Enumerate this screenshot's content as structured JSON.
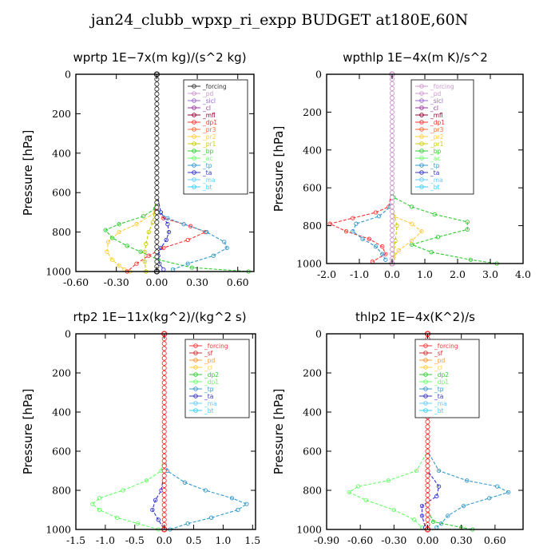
{
  "title": "jan24_clubb_wpxp_ri_expp  BUDGET at180E,60N",
  "chart_data": [
    {
      "type": "line",
      "title": "wprtp   1E−7x(m kg)/(s^2 kg)",
      "ylabel": "Pressure [hPa]",
      "xlim": [
        -0.6,
        0.72
      ],
      "ylim": [
        1000,
        0
      ],
      "xticks": [
        "-0.60",
        "-0.30",
        "0.00",
        "0.30",
        "0.60"
      ],
      "xtick_values": [
        -0.6,
        -0.3,
        0.0,
        0.3,
        0.6
      ],
      "yticks": [
        "0",
        "200",
        "400",
        "600",
        "800",
        "1000"
      ],
      "ytick_values": [
        0,
        200,
        400,
        600,
        800,
        1000
      ],
      "legend": [
        "_forcing",
        "_pd",
        "_sicl",
        "_cl",
        "_mfl",
        "_dp1",
        "_pr3",
        "_pr2",
        "_pr1",
        "_bp",
        "_ac",
        "_tp",
        "_ta",
        "_ma",
        "_bt"
      ],
      "legend_colors": [
        "#333333",
        "#cc99cc",
        "#9966cc",
        "#993399",
        "#990033",
        "#ff3333",
        "#ff6633",
        "#ffcc33",
        "#cccc00",
        "#33cc33",
        "#66ff66",
        "#3399cc",
        "#3333cc",
        "#66ccff",
        "#33ccff"
      ],
      "series": [
        {
          "name": "_pr2",
          "p": [
            0,
            600,
            700,
            760,
            800,
            850,
            900,
            940,
            970,
            990,
            1000
          ],
          "x": [
            0,
            0,
            -0.01,
            -0.15,
            -0.28,
            -0.36,
            -0.37,
            -0.33,
            -0.28,
            -0.24,
            -0.2
          ]
        },
        {
          "name": "_pr1",
          "p": [
            0,
            600,
            750,
            800,
            860,
            900,
            950,
            1000
          ],
          "x": [
            0,
            0,
            -0.03,
            -0.06,
            -0.08,
            -0.09,
            -0.09,
            -0.08
          ]
        },
        {
          "name": "_bp",
          "p": [
            0,
            600,
            680,
            720,
            760,
            790,
            830,
            870,
            900,
            940,
            980,
            1000
          ],
          "x": [
            0,
            0,
            -0.01,
            -0.1,
            -0.28,
            -0.38,
            -0.33,
            -0.22,
            -0.12,
            0.01,
            0.26,
            0.68
          ]
        },
        {
          "name": "_dp1",
          "p": [
            0,
            600,
            690,
            730,
            770,
            800,
            840,
            880,
            920,
            960,
            1000
          ],
          "x": [
            0,
            0,
            0,
            0.05,
            0.25,
            0.36,
            0.23,
            0.05,
            -0.06,
            -0.15,
            -0.22
          ]
        },
        {
          "name": "_tp",
          "p": [
            0,
            600,
            700,
            730,
            760,
            800,
            850,
            880,
            920,
            960,
            990
          ],
          "x": [
            0,
            0,
            0.01,
            0.08,
            0.2,
            0.37,
            0.5,
            0.52,
            0.42,
            0.23,
            0.12
          ]
        },
        {
          "name": "_ta",
          "p": [
            0,
            600,
            700,
            760,
            800,
            840,
            880,
            920,
            960,
            990
          ],
          "x": [
            0,
            0,
            0.03,
            0.08,
            0.09,
            0.07,
            0.03,
            0.01,
            0.02,
            0.05
          ]
        },
        {
          "name": "_forcing",
          "p": [
            0,
            1000
          ],
          "x": [
            0,
            0
          ]
        }
      ]
    },
    {
      "type": "line",
      "title": "wpthlp   1E−4x(m K)/s^2",
      "ylabel": "Pressure [hPa]",
      "xlim": [
        -2.0,
        4.0
      ],
      "ylim": [
        1000,
        0
      ],
      "xticks": [
        "-2.0",
        "-1.0",
        "0.0",
        "1.0",
        "2.0",
        "3.0",
        "4.0"
      ],
      "xtick_values": [
        -2,
        -1,
        0,
        1,
        2,
        3,
        4
      ],
      "yticks": [
        "0",
        "200",
        "400",
        "600",
        "800",
        "1000"
      ],
      "ytick_values": [
        0,
        200,
        400,
        600,
        800,
        1000
      ],
      "legend": [
        "_forcing",
        "_pd",
        "_sicl",
        "_cl",
        "_mfl",
        "_dp1",
        "_pr3",
        "_pr2",
        "_pr1",
        "_bp",
        "_ac",
        "_tp",
        "_ta",
        "_ma",
        "_bt"
      ],
      "legend_colors": [
        "#cc99cc",
        "#cc99cc",
        "#9966cc",
        "#993399",
        "#990033",
        "#ff3333",
        "#ff6633",
        "#ffcc33",
        "#cccc00",
        "#33cc33",
        "#66ff66",
        "#3399cc",
        "#3333cc",
        "#66ccff",
        "#33ccff"
      ],
      "series": [
        {
          "name": "_bp",
          "p": [
            0,
            600,
            650,
            700,
            740,
            780,
            820,
            860,
            900,
            940,
            980,
            1000
          ],
          "x": [
            0,
            0,
            0.05,
            0.6,
            1.3,
            2.3,
            2.3,
            1.4,
            0.6,
            1.2,
            2.4,
            3.2
          ]
        },
        {
          "name": "_dp1",
          "p": [
            0,
            600,
            700,
            730,
            760,
            790,
            830,
            870,
            910,
            950,
            990
          ],
          "x": [
            0,
            0,
            -0.1,
            -0.5,
            -1.2,
            -1.9,
            -1.4,
            -0.7,
            -0.3,
            -0.2,
            -0.6
          ]
        },
        {
          "name": "_tp",
          "p": [
            0,
            600,
            700,
            750,
            790,
            830,
            870,
            910,
            950,
            980
          ],
          "x": [
            0,
            0,
            -0.05,
            -0.4,
            -1.1,
            -1.2,
            -0.9,
            -0.5,
            -0.3,
            -0.2
          ]
        },
        {
          "name": "_pr2",
          "p": [
            0,
            600,
            750,
            790,
            830,
            880,
            930,
            970,
            1000
          ],
          "x": [
            0,
            0,
            0.05,
            0.6,
            0.9,
            0.6,
            0.2,
            0.05,
            0
          ]
        },
        {
          "name": "_pr1",
          "p": [
            0,
            700,
            800,
            880,
            950,
            1000
          ],
          "x": [
            0,
            0,
            0.15,
            0.1,
            0.05,
            0
          ]
        },
        {
          "name": "_forcing",
          "p": [
            0,
            1000
          ],
          "x": [
            0,
            0
          ]
        }
      ]
    },
    {
      "type": "line",
      "title": "rtp2   1E−11x(kg^2)/(kg^2 s)",
      "ylabel": "Pressure [hPa]",
      "xlim": [
        -1.5,
        1.55
      ],
      "ylim": [
        1000,
        0
      ],
      "xticks": [
        "-1.5",
        "-1.0",
        "-0.5",
        "0.0",
        "0.5",
        "1.0",
        "1.5"
      ],
      "xtick_values": [
        -1.5,
        -1.0,
        -0.5,
        0.0,
        0.5,
        1.0,
        1.5
      ],
      "yticks": [
        "0",
        "200",
        "400",
        "600",
        "800",
        "1000"
      ],
      "ytick_values": [
        0,
        200,
        400,
        600,
        800,
        1000
      ],
      "legend": [
        "_forcing",
        "_sf",
        "_pd",
        "_cl",
        "_dp2",
        "_dp1",
        "_tp",
        "_ta",
        "_ma",
        "_bt"
      ],
      "legend_colors": [
        "#ff3333",
        "#cc3333",
        "#ff9933",
        "#ffcc33",
        "#33cc33",
        "#66ff66",
        "#3399cc",
        "#3333cc",
        "#66ccff",
        "#33ccff"
      ],
      "series": [
        {
          "name": "_dp1",
          "p": [
            0,
            600,
            700,
            750,
            800,
            840,
            870,
            900,
            940,
            970,
            1000
          ],
          "x": [
            0,
            0,
            -0.05,
            -0.3,
            -0.7,
            -1.1,
            -1.22,
            -1.1,
            -0.8,
            -0.45,
            -0.1
          ]
        },
        {
          "name": "_tp",
          "p": [
            0,
            600,
            700,
            760,
            800,
            840,
            870,
            900,
            940,
            970,
            1000
          ],
          "x": [
            0,
            0,
            0.05,
            0.35,
            0.7,
            1.15,
            1.4,
            1.25,
            0.8,
            0.4,
            0.1
          ]
        },
        {
          "name": "_ta",
          "p": [
            0,
            700,
            800,
            850,
            900,
            950,
            1000
          ],
          "x": [
            0,
            0,
            -0.05,
            -0.15,
            -0.2,
            -0.1,
            0
          ]
        },
        {
          "name": "_forcing",
          "p": [
            0,
            1000
          ],
          "x": [
            0,
            0
          ]
        }
      ]
    },
    {
      "type": "line",
      "title": "thlp2   1E−4x(K^2)/s",
      "ylabel": "Pressure [hPa]",
      "xlim": [
        -0.9,
        0.85
      ],
      "ylim": [
        1000,
        0
      ],
      "xticks": [
        "-0.90",
        "-0.60",
        "-0.30",
        "0.00",
        "0.30",
        "0.60"
      ],
      "xtick_values": [
        -0.9,
        -0.6,
        -0.3,
        0.0,
        0.3,
        0.6
      ],
      "yticks": [
        "0",
        "200",
        "400",
        "600",
        "800",
        "1000"
      ],
      "ytick_values": [
        0,
        200,
        400,
        600,
        800,
        1000
      ],
      "legend": [
        "_forcing",
        "_sf",
        "_pd",
        "_cl",
        "_dp2",
        "_dp1",
        "_tp",
        "_ta",
        "_ma",
        "_bt"
      ],
      "legend_colors": [
        "#ff3333",
        "#cc3333",
        "#ff9933",
        "#ffcc33",
        "#33cc33",
        "#66ff66",
        "#3399cc",
        "#3333cc",
        "#66ccff",
        "#33ccff"
      ],
      "series": [
        {
          "name": "_dp1",
          "p": [
            0,
            600,
            700,
            750,
            780,
            810,
            850,
            900,
            950,
            990
          ],
          "x": [
            0,
            0,
            -0.1,
            -0.35,
            -0.62,
            -0.7,
            -0.55,
            -0.3,
            -0.12,
            -0.05
          ]
        },
        {
          "name": "_tp",
          "p": [
            0,
            600,
            700,
            750,
            780,
            810,
            840,
            880,
            930,
            970,
            990
          ],
          "x": [
            0,
            0,
            0.1,
            0.35,
            0.62,
            0.72,
            0.55,
            0.32,
            0.18,
            0.12,
            0.08
          ]
        },
        {
          "name": "_ta",
          "p": [
            0,
            700,
            780,
            830,
            880,
            930,
            990
          ],
          "x": [
            0,
            0,
            0.1,
            0.08,
            -0.05,
            -0.05,
            -0.02
          ]
        },
        {
          "name": "_dp2",
          "p": [
            0,
            900,
            960,
            990,
            1000
          ],
          "x": [
            0,
            0,
            0.05,
            0.3,
            0.4
          ]
        },
        {
          "name": "_forcing",
          "p": [
            0,
            1000
          ],
          "x": [
            0,
            0
          ]
        }
      ]
    }
  ]
}
